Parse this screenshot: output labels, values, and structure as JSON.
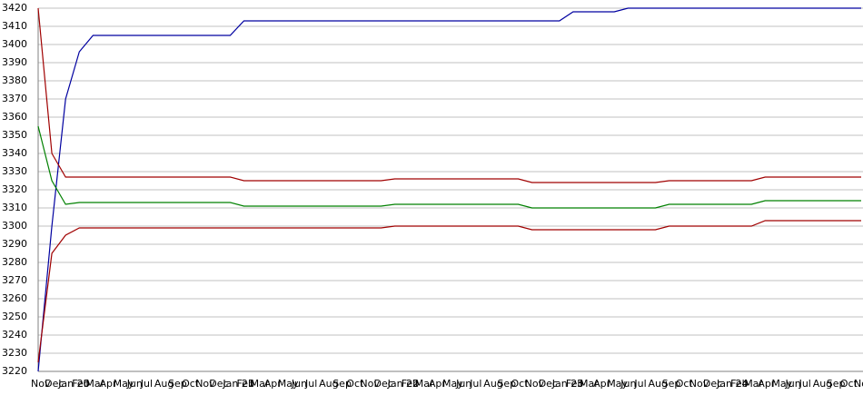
{
  "chart_data": {
    "type": "line",
    "categories": [
      "Nov",
      "Dec",
      "Jan 20",
      "Feb",
      "Mar",
      "Apr",
      "May",
      "Jun",
      "Jul",
      "Aug",
      "Sep",
      "Oct",
      "Nov",
      "Dec",
      "Jan 21",
      "Feb",
      "Mar",
      "Apr",
      "May",
      "Jun",
      "Jul",
      "Aug",
      "Sep",
      "Oct",
      "Nov",
      "Dec",
      "Jan 22",
      "Feb",
      "Mar",
      "Apr",
      "May",
      "Jun",
      "Jul",
      "Aug",
      "Sep",
      "Oct",
      "Nov",
      "Dec",
      "Jan 23",
      "Feb",
      "Mar",
      "Apr",
      "May",
      "Jun",
      "Jul",
      "Aug",
      "Sep",
      "Oct",
      "Nov",
      "Dec",
      "Jan 24",
      "Feb",
      "Mar",
      "Apr",
      "May",
      "Jun",
      "Jul",
      "Aug",
      "Sep",
      "Oct",
      "Nov"
    ],
    "series": [
      {
        "color": "#0000a0",
        "values": [
          3220,
          3300,
          3370,
          3396,
          3405,
          3405,
          3405,
          3405,
          3405,
          3405,
          3405,
          3405,
          3405,
          3405,
          3405,
          3413,
          3413,
          3413,
          3413,
          3413,
          3413,
          3413,
          3413,
          3413,
          3413,
          3413,
          3413,
          3413,
          3413,
          3413,
          3413,
          3413,
          3413,
          3413,
          3413,
          3413,
          3413,
          3413,
          3413,
          3418,
          3418,
          3418,
          3418,
          3420,
          3420,
          3420,
          3420,
          3420,
          3420,
          3420,
          3420,
          3420,
          3420,
          3420,
          3420,
          3420,
          3420,
          3420,
          3420,
          3420,
          3420
        ]
      },
      {
        "color": "#a00000",
        "values": [
          3420,
          3340,
          3327,
          3327,
          3327,
          3327,
          3327,
          3327,
          3327,
          3327,
          3327,
          3327,
          3327,
          3327,
          3327,
          3325,
          3325,
          3325,
          3325,
          3325,
          3325,
          3325,
          3325,
          3325,
          3325,
          3325,
          3326,
          3326,
          3326,
          3326,
          3326,
          3326,
          3326,
          3326,
          3326,
          3326,
          3324,
          3324,
          3324,
          3324,
          3324,
          3324,
          3324,
          3324,
          3324,
          3324,
          3325,
          3325,
          3325,
          3325,
          3325,
          3325,
          3325,
          3327,
          3327,
          3327,
          3327,
          3327,
          3327,
          3327,
          3327
        ]
      },
      {
        "color": "#008000",
        "values": [
          3355,
          3325,
          3312,
          3313,
          3313,
          3313,
          3313,
          3313,
          3313,
          3313,
          3313,
          3313,
          3313,
          3313,
          3313,
          3311,
          3311,
          3311,
          3311,
          3311,
          3311,
          3311,
          3311,
          3311,
          3311,
          3311,
          3312,
          3312,
          3312,
          3312,
          3312,
          3312,
          3312,
          3312,
          3312,
          3312,
          3310,
          3310,
          3310,
          3310,
          3310,
          3310,
          3310,
          3310,
          3310,
          3310,
          3312,
          3312,
          3312,
          3312,
          3312,
          3312,
          3312,
          3314,
          3314,
          3314,
          3314,
          3314,
          3314,
          3314,
          3314
        ]
      },
      {
        "color": "#a00000",
        "values": [
          3225,
          3285,
          3295,
          3299,
          3299,
          3299,
          3299,
          3299,
          3299,
          3299,
          3299,
          3299,
          3299,
          3299,
          3299,
          3299,
          3299,
          3299,
          3299,
          3299,
          3299,
          3299,
          3299,
          3299,
          3299,
          3299,
          3300,
          3300,
          3300,
          3300,
          3300,
          3300,
          3300,
          3300,
          3300,
          3300,
          3298,
          3298,
          3298,
          3298,
          3298,
          3298,
          3298,
          3298,
          3298,
          3298,
          3300,
          3300,
          3300,
          3300,
          3300,
          3300,
          3300,
          3303,
          3303,
          3303,
          3303,
          3303,
          3303,
          3303,
          3303
        ]
      }
    ],
    "ylim": [
      3220,
      3420
    ],
    "yticks": [
      3220,
      3230,
      3240,
      3250,
      3260,
      3270,
      3280,
      3290,
      3300,
      3310,
      3320,
      3330,
      3340,
      3350,
      3360,
      3370,
      3380,
      3390,
      3400,
      3410,
      3420
    ],
    "grid": true
  }
}
